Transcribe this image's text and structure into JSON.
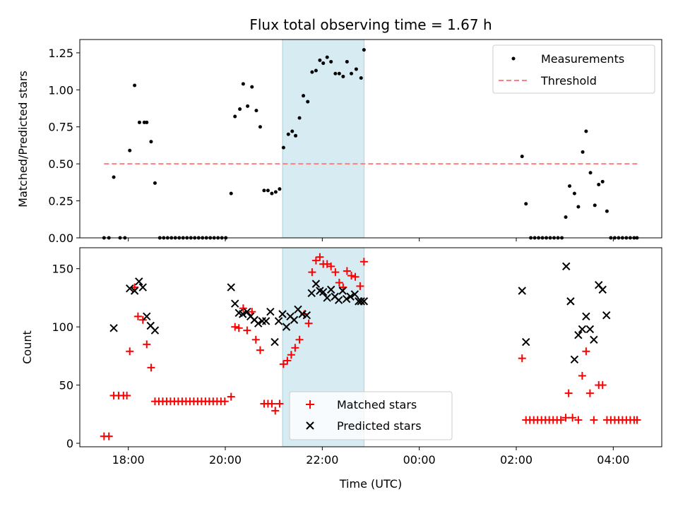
{
  "chart_data": [
    {
      "type": "scatter",
      "title": "Flux total observing time = 1.67 h",
      "xlabel": "",
      "ylabel": "Matched/Predicted stars",
      "x_unit": "hours since 00:00 UTC of first day",
      "xlim": [
        17.0,
        29.0
      ],
      "ylim": [
        0.0,
        1.34
      ],
      "yticks": [
        0.0,
        0.25,
        0.5,
        0.75,
        1.0,
        1.25
      ],
      "ytick_labels": [
        "0.00",
        "0.25",
        "0.50",
        "0.75",
        "1.00",
        "1.25"
      ],
      "xticks": [
        18,
        20,
        22,
        24,
        26,
        28
      ],
      "highlight_span": [
        21.18,
        22.86
      ],
      "legend": {
        "position": "upper right",
        "entries": [
          "Measurements",
          "Threshold"
        ]
      },
      "threshold": {
        "name": "Threshold",
        "value": 0.5,
        "x_range": [
          17.5,
          28.5
        ],
        "color": "#ff7f7f"
      },
      "series": [
        {
          "name": "Measurements",
          "marker": "dot",
          "color": "#000000",
          "points": [
            [
              17.5,
              0.0
            ],
            [
              17.6,
              0.0
            ],
            [
              17.7,
              0.41
            ],
            [
              17.83,
              0.0
            ],
            [
              17.93,
              0.0
            ],
            [
              18.03,
              0.59
            ],
            [
              18.13,
              1.03
            ],
            [
              18.23,
              0.78
            ],
            [
              18.33,
              0.78
            ],
            [
              18.38,
              0.78
            ],
            [
              18.47,
              0.65
            ],
            [
              18.55,
              0.37
            ],
            [
              18.65,
              0.0
            ],
            [
              18.73,
              0.0
            ],
            [
              18.81,
              0.0
            ],
            [
              18.89,
              0.0
            ],
            [
              18.97,
              0.0
            ],
            [
              19.05,
              0.0
            ],
            [
              19.13,
              0.0
            ],
            [
              19.21,
              0.0
            ],
            [
              19.29,
              0.0
            ],
            [
              19.37,
              0.0
            ],
            [
              19.45,
              0.0
            ],
            [
              19.53,
              0.0
            ],
            [
              19.61,
              0.0
            ],
            [
              19.69,
              0.0
            ],
            [
              19.77,
              0.0
            ],
            [
              19.85,
              0.0
            ],
            [
              19.93,
              0.0
            ],
            [
              20.01,
              0.0
            ],
            [
              20.12,
              0.3
            ],
            [
              20.2,
              0.82
            ],
            [
              20.3,
              0.87
            ],
            [
              20.37,
              1.04
            ],
            [
              20.46,
              0.89
            ],
            [
              20.55,
              1.02
            ],
            [
              20.64,
              0.86
            ],
            [
              20.72,
              0.75
            ],
            [
              20.8,
              0.32
            ],
            [
              20.88,
              0.32
            ],
            [
              20.96,
              0.3
            ],
            [
              21.04,
              0.31
            ],
            [
              21.12,
              0.33
            ],
            [
              21.2,
              0.61
            ],
            [
              21.3,
              0.7
            ],
            [
              21.38,
              0.72
            ],
            [
              21.45,
              0.69
            ],
            [
              21.53,
              0.81
            ],
            [
              21.61,
              0.96
            ],
            [
              21.7,
              0.92
            ],
            [
              21.79,
              1.12
            ],
            [
              21.87,
              1.13
            ],
            [
              21.95,
              1.2
            ],
            [
              22.02,
              1.18
            ],
            [
              22.1,
              1.22
            ],
            [
              22.18,
              1.19
            ],
            [
              22.27,
              1.11
            ],
            [
              22.35,
              1.11
            ],
            [
              22.43,
              1.09
            ],
            [
              22.51,
              1.19
            ],
            [
              22.6,
              1.11
            ],
            [
              22.7,
              1.14
            ],
            [
              22.8,
              1.08
            ],
            [
              22.86,
              1.27
            ],
            [
              26.12,
              0.55
            ],
            [
              26.2,
              0.23
            ],
            [
              26.3,
              0.0
            ],
            [
              26.38,
              0.0
            ],
            [
              26.46,
              0.0
            ],
            [
              26.54,
              0.0
            ],
            [
              26.62,
              0.0
            ],
            [
              26.7,
              0.0
            ],
            [
              26.78,
              0.0
            ],
            [
              26.86,
              0.0
            ],
            [
              26.94,
              0.0
            ],
            [
              27.02,
              0.14
            ],
            [
              27.1,
              0.35
            ],
            [
              27.2,
              0.3
            ],
            [
              27.28,
              0.21
            ],
            [
              27.37,
              0.58
            ],
            [
              27.44,
              0.72
            ],
            [
              27.53,
              0.44
            ],
            [
              27.62,
              0.22
            ],
            [
              27.7,
              0.36
            ],
            [
              27.78,
              0.38
            ],
            [
              27.87,
              0.18
            ],
            [
              27.95,
              0.0
            ],
            [
              28.03,
              0.0
            ],
            [
              28.11,
              0.0
            ],
            [
              28.19,
              0.0
            ],
            [
              28.27,
              0.0
            ],
            [
              28.35,
              0.0
            ],
            [
              28.43,
              0.0
            ],
            [
              28.49,
              0.0
            ]
          ]
        }
      ]
    },
    {
      "type": "scatter",
      "title": "",
      "xlabel": "Time (UTC)",
      "ylabel": "Count",
      "xlim": [
        17.0,
        29.0
      ],
      "ylim": [
        -3,
        168
      ],
      "yticks": [
        0,
        50,
        100,
        150
      ],
      "ytick_labels": [
        "0",
        "50",
        "100",
        "150"
      ],
      "xticks": [
        18,
        20,
        22,
        24,
        26,
        28
      ],
      "xtick_labels": [
        "18:00",
        "20:00",
        "22:00",
        "00:00",
        "02:00",
        "04:00"
      ],
      "highlight_span": [
        21.18,
        22.86
      ],
      "legend": {
        "position": "lower center",
        "entries": [
          "Matched stars",
          "Predicted stars"
        ]
      },
      "series": [
        {
          "name": "Matched stars",
          "marker": "plus",
          "color": "#ff0000",
          "points": [
            [
              17.5,
              6
            ],
            [
              17.6,
              6
            ],
            [
              17.7,
              41
            ],
            [
              17.8,
              41
            ],
            [
              17.9,
              41
            ],
            [
              17.97,
              41
            ],
            [
              18.03,
              79
            ],
            [
              18.13,
              134
            ],
            [
              18.2,
              109
            ],
            [
              18.3,
              106
            ],
            [
              18.38,
              85
            ],
            [
              18.47,
              65
            ],
            [
              18.55,
              36
            ],
            [
              18.63,
              36
            ],
            [
              18.71,
              36
            ],
            [
              18.79,
              36
            ],
            [
              18.87,
              36
            ],
            [
              18.95,
              36
            ],
            [
              19.03,
              36
            ],
            [
              19.11,
              36
            ],
            [
              19.19,
              36
            ],
            [
              19.27,
              36
            ],
            [
              19.35,
              36
            ],
            [
              19.43,
              36
            ],
            [
              19.51,
              36
            ],
            [
              19.59,
              36
            ],
            [
              19.67,
              36
            ],
            [
              19.75,
              36
            ],
            [
              19.83,
              36
            ],
            [
              19.91,
              36
            ],
            [
              19.99,
              36
            ],
            [
              20.12,
              40
            ],
            [
              20.2,
              100
            ],
            [
              20.28,
              99
            ],
            [
              20.37,
              116
            ],
            [
              20.45,
              97
            ],
            [
              20.55,
              113
            ],
            [
              20.63,
              89
            ],
            [
              20.72,
              80
            ],
            [
              20.8,
              34
            ],
            [
              20.88,
              34
            ],
            [
              20.96,
              34
            ],
            [
              21.03,
              28
            ],
            [
              21.12,
              34
            ],
            [
              21.2,
              68
            ],
            [
              21.28,
              71
            ],
            [
              21.36,
              76
            ],
            [
              21.44,
              82
            ],
            [
              21.53,
              89
            ],
            [
              21.63,
              111
            ],
            [
              21.72,
              103
            ],
            [
              21.79,
              147
            ],
            [
              21.87,
              157
            ],
            [
              21.95,
              160
            ],
            [
              22.02,
              154
            ],
            [
              22.1,
              154
            ],
            [
              22.18,
              152
            ],
            [
              22.27,
              147
            ],
            [
              22.35,
              138
            ],
            [
              22.43,
              134
            ],
            [
              22.51,
              148
            ],
            [
              22.6,
              144
            ],
            [
              22.68,
              143
            ],
            [
              22.78,
              135
            ],
            [
              22.86,
              156
            ],
            [
              26.12,
              73
            ],
            [
              26.2,
              20
            ],
            [
              26.28,
              20
            ],
            [
              26.36,
              20
            ],
            [
              26.44,
              20
            ],
            [
              26.52,
              20
            ],
            [
              26.6,
              20
            ],
            [
              26.68,
              20
            ],
            [
              26.76,
              20
            ],
            [
              26.84,
              20
            ],
            [
              26.92,
              20
            ],
            [
              27.02,
              22
            ],
            [
              27.08,
              43
            ],
            [
              27.16,
              22
            ],
            [
              27.28,
              20
            ],
            [
              27.36,
              58
            ],
            [
              27.44,
              79
            ],
            [
              27.52,
              43
            ],
            [
              27.6,
              20
            ],
            [
              27.7,
              50
            ],
            [
              27.78,
              50
            ],
            [
              27.87,
              20
            ],
            [
              27.95,
              20
            ],
            [
              28.03,
              20
            ],
            [
              28.11,
              20
            ],
            [
              28.19,
              20
            ],
            [
              28.27,
              20
            ],
            [
              28.35,
              20
            ],
            [
              28.43,
              20
            ],
            [
              28.49,
              20
            ]
          ]
        },
        {
          "name": "Predicted stars",
          "marker": "x",
          "color": "#000000",
          "points": [
            [
              17.7,
              99
            ],
            [
              18.03,
              133
            ],
            [
              18.13,
              131
            ],
            [
              18.22,
              139
            ],
            [
              18.3,
              134
            ],
            [
              18.38,
              109
            ],
            [
              18.46,
              101
            ],
            [
              18.55,
              97
            ],
            [
              20.12,
              134
            ],
            [
              20.2,
              120
            ],
            [
              20.28,
              112
            ],
            [
              20.36,
              111
            ],
            [
              20.45,
              113
            ],
            [
              20.52,
              109
            ],
            [
              20.6,
              106
            ],
            [
              20.68,
              103
            ],
            [
              20.76,
              105
            ],
            [
              20.84,
              105
            ],
            [
              20.93,
              113
            ],
            [
              21.02,
              87
            ],
            [
              21.1,
              105
            ],
            [
              21.18,
              111
            ],
            [
              21.26,
              100
            ],
            [
              21.34,
              109
            ],
            [
              21.42,
              106
            ],
            [
              21.5,
              115
            ],
            [
              21.59,
              111
            ],
            [
              21.68,
              110
            ],
            [
              21.78,
              129
            ],
            [
              21.87,
              137
            ],
            [
              21.95,
              131
            ],
            [
              22.02,
              130
            ],
            [
              22.1,
              125
            ],
            [
              22.18,
              132
            ],
            [
              22.26,
              126
            ],
            [
              22.34,
              123
            ],
            [
              22.42,
              131
            ],
            [
              22.5,
              124
            ],
            [
              22.58,
              126
            ],
            [
              22.67,
              128
            ],
            [
              22.75,
              122
            ],
            [
              22.8,
              122
            ],
            [
              22.86,
              122
            ],
            [
              26.12,
              131
            ],
            [
              26.2,
              87
            ],
            [
              27.03,
              152
            ],
            [
              27.12,
              122
            ],
            [
              27.2,
              72
            ],
            [
              27.28,
              93
            ],
            [
              27.36,
              98
            ],
            [
              27.44,
              109
            ],
            [
              27.52,
              98
            ],
            [
              27.6,
              89
            ],
            [
              27.7,
              136
            ],
            [
              27.78,
              132
            ],
            [
              27.86,
              110
            ]
          ]
        }
      ]
    }
  ]
}
